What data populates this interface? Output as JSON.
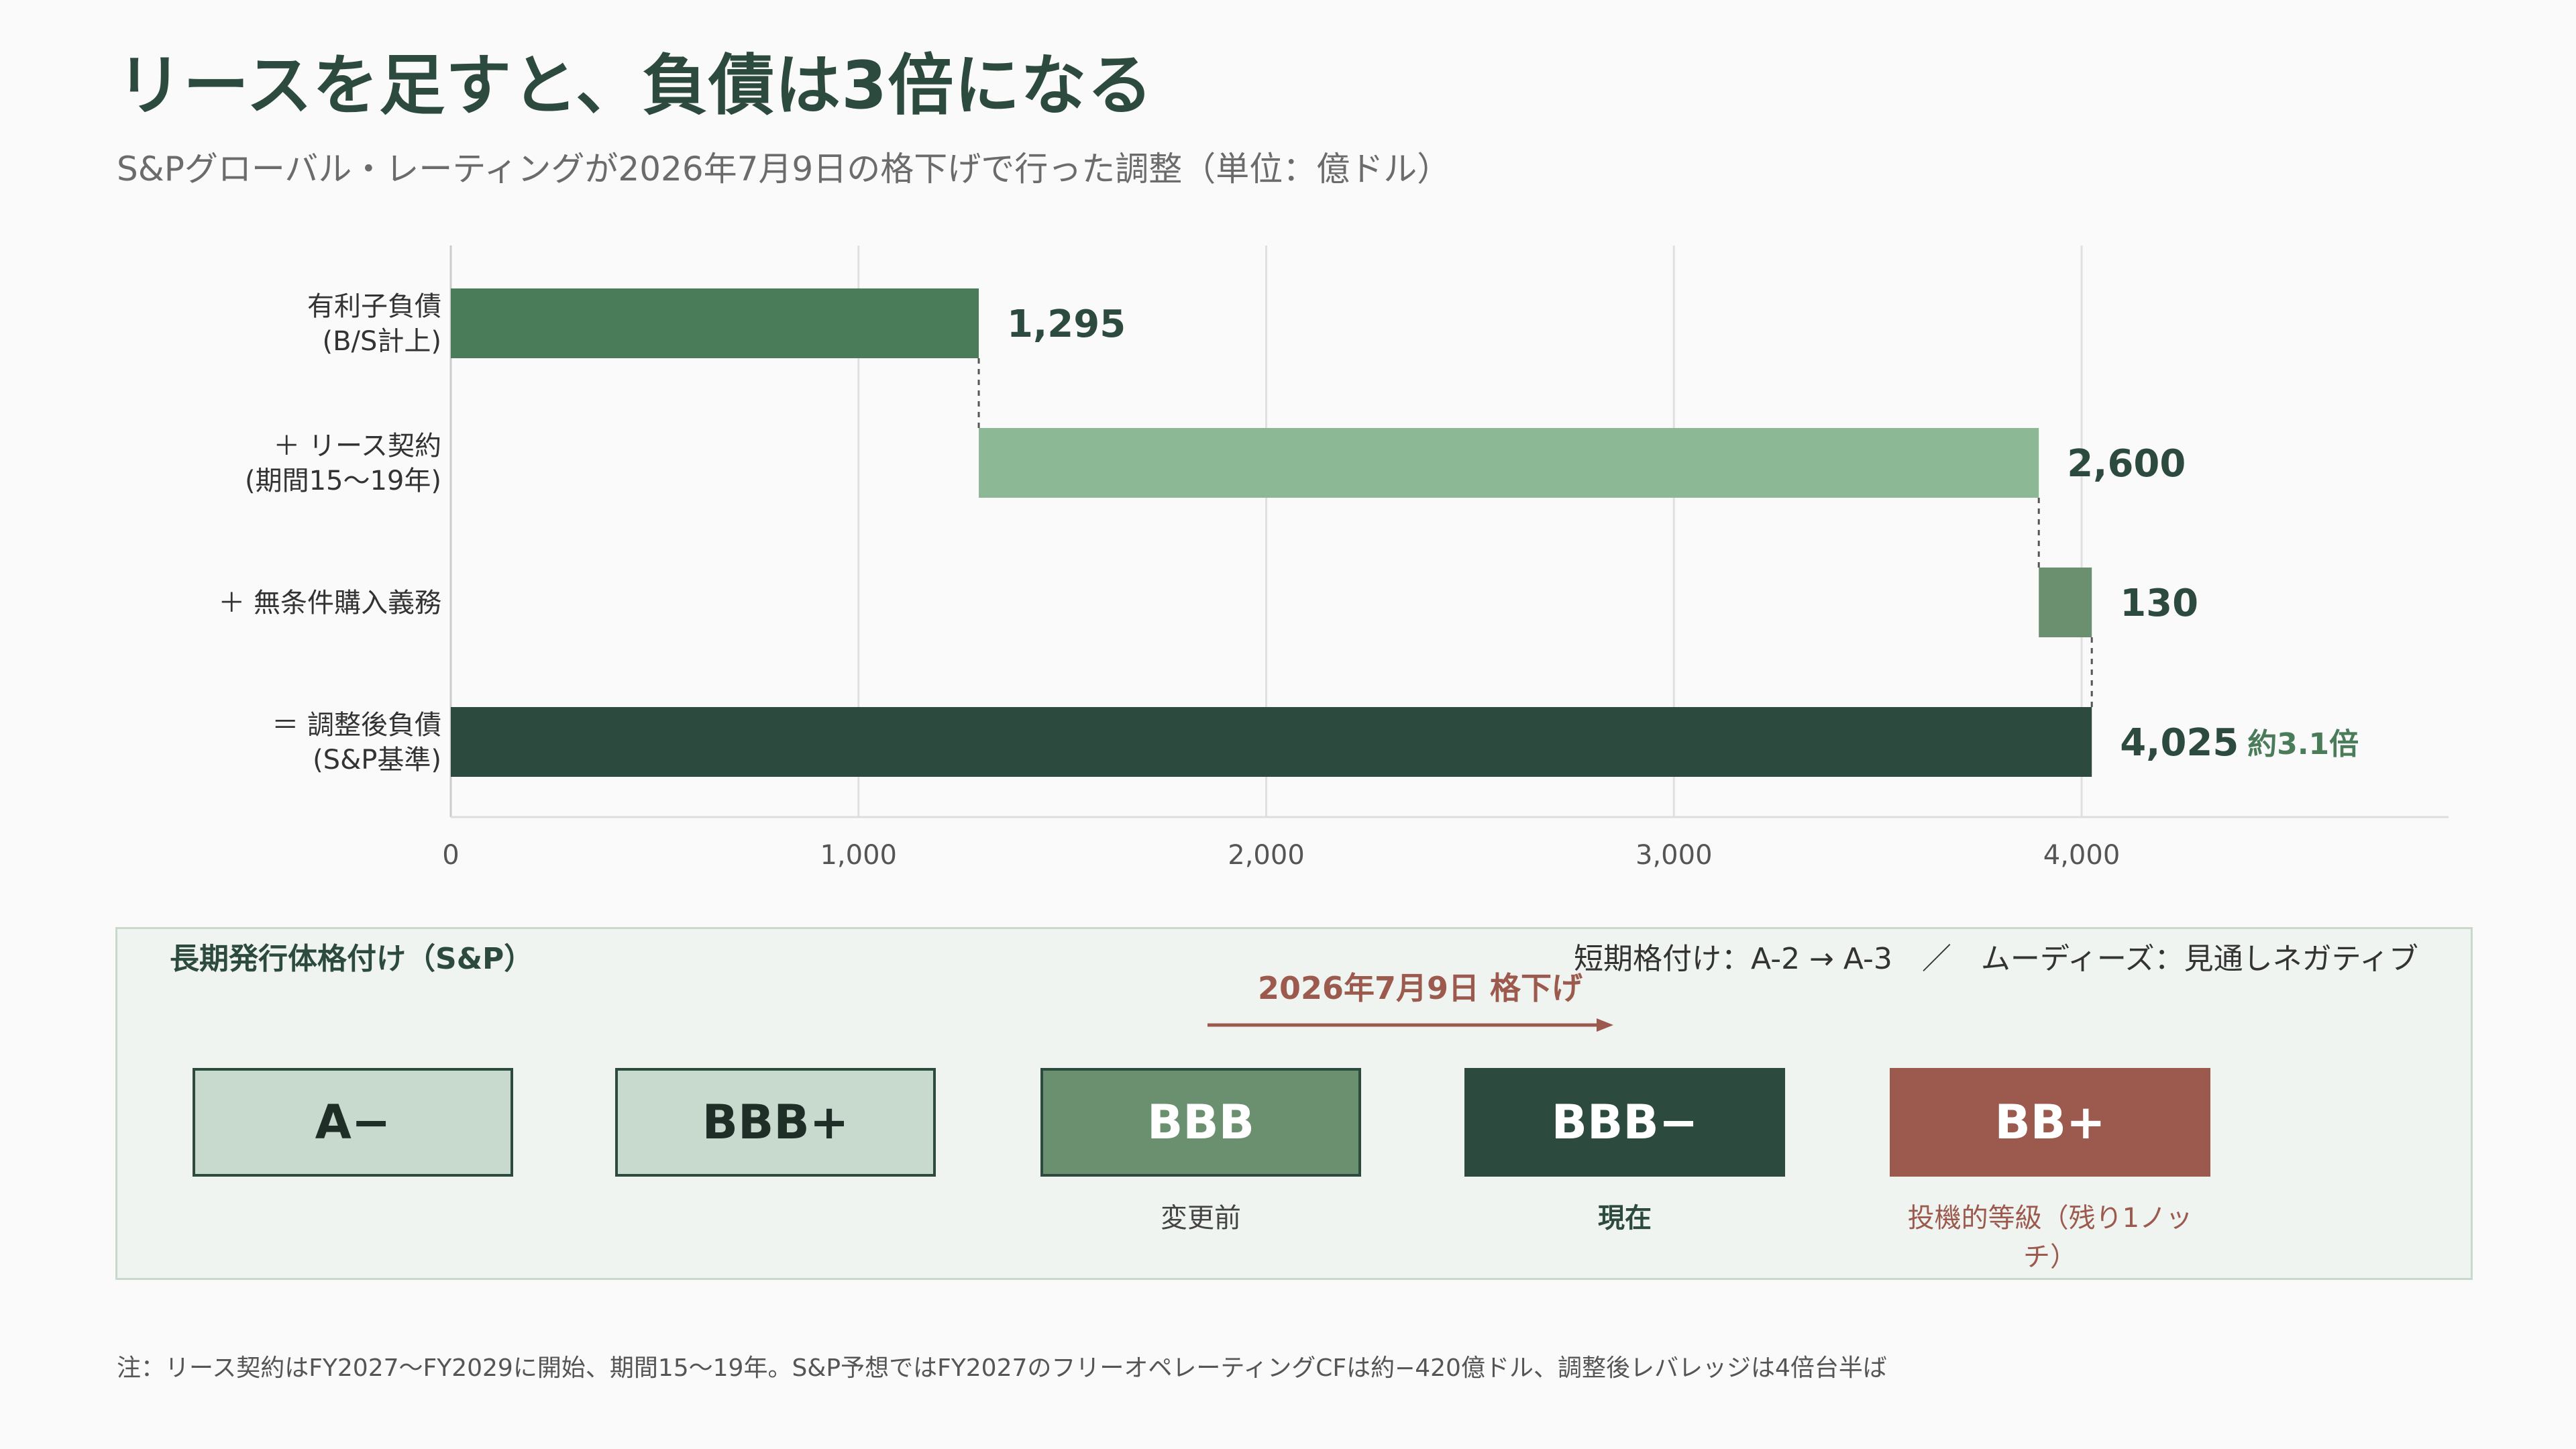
{
  "header": {
    "title": "リースを足すと、負債は3倍になる",
    "subtitle": "S&Pグローバル・レーティングが2026年7月9日の格下げで行った調整（単位：億ドル）"
  },
  "chart_data": {
    "type": "bar",
    "orientation": "horizontal",
    "style": "waterfall",
    "categories": [
      [
        "有利子負債",
        "(B/S計上)"
      ],
      [
        "＋ リース契約",
        "(期間15〜19年)"
      ],
      [
        "＋ 無条件購入義務"
      ],
      [
        "＝ 調整後負債",
        "(S&P基準)"
      ]
    ],
    "bars": [
      {
        "start": 0,
        "value": 1295,
        "label": "1,295",
        "color": "#4a7c59"
      },
      {
        "start": 1295,
        "value": 2600,
        "label": "2,600",
        "color": "#8db896"
      },
      {
        "start": 3895,
        "value": 130,
        "label": "130",
        "color": "#6a9070"
      },
      {
        "start": 0,
        "value": 4025,
        "label": "4,025",
        "color": "#2d4a3e"
      }
    ],
    "total_annotation": "約3.1倍",
    "xlim": [
      0,
      4900
    ],
    "ticks": [
      0,
      1000,
      2000,
      3000,
      4000
    ],
    "tick_labels": [
      "0",
      "1,000",
      "2,000",
      "3,000",
      "4,000"
    ],
    "grid": true,
    "connectors": "dashed"
  },
  "ratings": {
    "title": "長期発行体格付け（S&P）",
    "note": "短期格付け：A-2 → A-3　／　ムーディーズ：見通しネガティブ",
    "downgrade_label": "2026年7月9日 格下げ",
    "items": [
      {
        "grade": "A−",
        "caption": "",
        "bg": "#c8dace",
        "fg": "#1f2f28",
        "border": "#2d4a3e"
      },
      {
        "grade": "BBB+",
        "caption": "",
        "bg": "#c8dace",
        "fg": "#1f2f28",
        "border": "#2d4a3e"
      },
      {
        "grade": "BBB",
        "caption": "変更前",
        "bg": "#6a9070",
        "fg": "#ffffff",
        "border": "#2d4a3e"
      },
      {
        "grade": "BBB−",
        "caption": "現在",
        "bg": "#2d4a3e",
        "fg": "#ffffff",
        "border": "#2d4a3e"
      },
      {
        "grade": "BB+",
        "caption": "投機的等級（残り1ノッチ）",
        "bg": "#9c5a4e",
        "fg": "#ffffff",
        "border": "#9c5a4e"
      }
    ],
    "arrow_color": "#9c5a4e"
  },
  "footnote": "注：リース契約はFY2027〜FY2029に開始、期間15〜19年。S&P予想ではFY2027のフリーオペレーティングCFは約−420億ドル、調整後レバレッジは4倍台半ば"
}
